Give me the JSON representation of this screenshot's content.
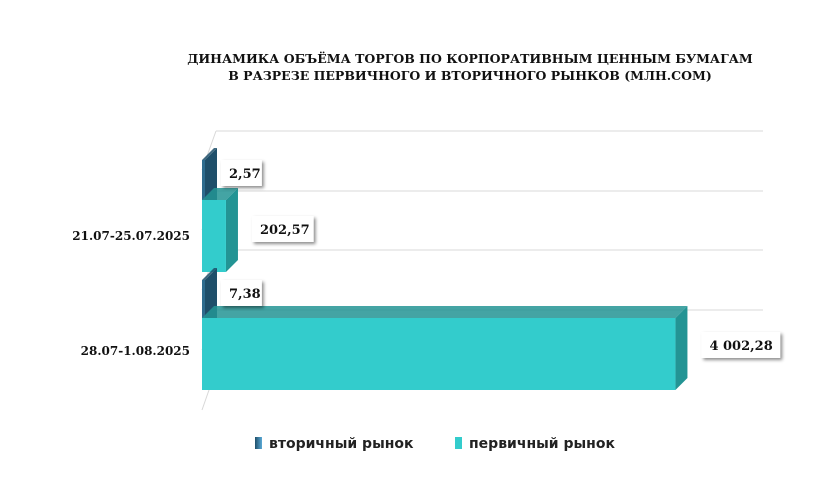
{
  "chart_data": {
    "type": "bar",
    "orientation": "horizontal",
    "title": "ДИНАМИКА ОБЪЁМА ТОРГОВ ПО КОРПОРАТИВНЫМ ЦЕННЫМ БУМАГАМ",
    "subtitle": "В РАЗРЕЗЕ ПЕРВИЧНОГО И ВТОРИЧНОГО РЫНКОВ  (МЛН.СОМ)",
    "categories": [
      "21.07-25.07.2025",
      "28.07-1.08.2025"
    ],
    "series": [
      {
        "name": "вторичный рынок",
        "values": [
          2.57,
          7.38
        ],
        "labels": [
          "2,57",
          "7,38"
        ],
        "color": "#2e6c8e",
        "side_color": "#1f4f6a"
      },
      {
        "name": "первичный рынок",
        "values": [
          202.57,
          4002.28
        ],
        "labels": [
          "202,57",
          "4 002,28"
        ],
        "color": "#33cccc",
        "side_color": "#239494"
      }
    ],
    "xlim": [
      0,
      4100
    ],
    "grid": true,
    "legend_position": "bottom",
    "style": "3d"
  }
}
